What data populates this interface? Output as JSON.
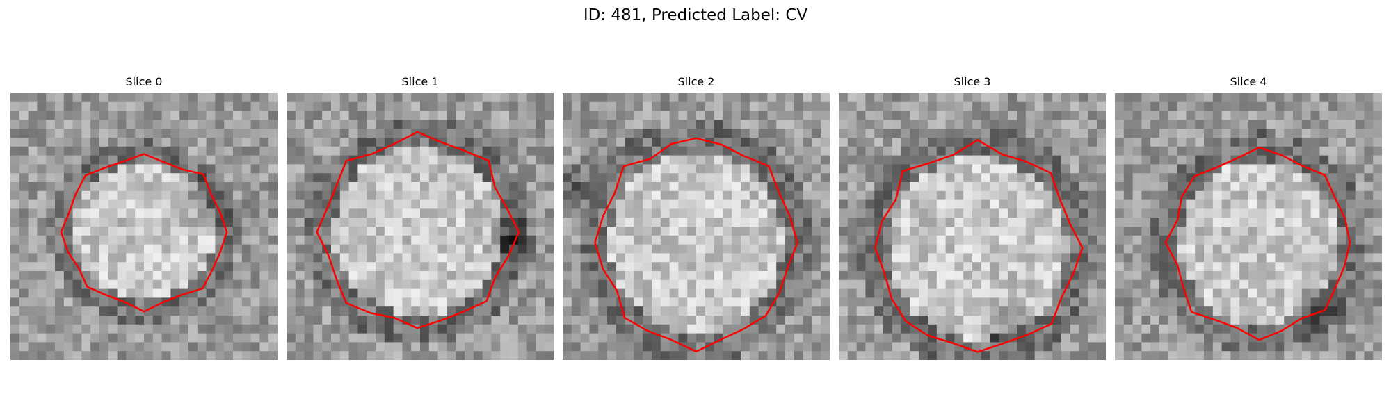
{
  "figure": {
    "title": "ID: 481, Predicted Label: CV"
  },
  "panels": [
    {
      "title": "Slice 0",
      "seed": 11,
      "contour_center": [
        0.5,
        0.52
      ],
      "contour_radius": [
        0.31,
        0.3
      ],
      "dark_spot": [
        0.72,
        0.4
      ]
    },
    {
      "title": "Slice 1",
      "seed": 23,
      "contour_center": [
        0.49,
        0.52
      ],
      "contour_radius": [
        0.37,
        0.37
      ],
      "dark_spot": [
        0.85,
        0.55
      ]
    },
    {
      "title": "Slice 2",
      "seed": 37,
      "contour_center": [
        0.5,
        0.56
      ],
      "contour_radius": [
        0.38,
        0.4
      ],
      "dark_spot": [
        0.05,
        0.35
      ]
    },
    {
      "title": "Slice 3",
      "seed": 41,
      "contour_center": [
        0.52,
        0.58
      ],
      "contour_radius": [
        0.39,
        0.4
      ],
      "dark_spot": [
        0.62,
        0.85
      ]
    },
    {
      "title": "Slice 4",
      "seed": 53,
      "contour_center": [
        0.54,
        0.56
      ],
      "contour_radius": [
        0.35,
        0.36
      ],
      "dark_spot": [
        0.78,
        0.8
      ]
    }
  ],
  "colors": {
    "contour": "#ff0000"
  }
}
